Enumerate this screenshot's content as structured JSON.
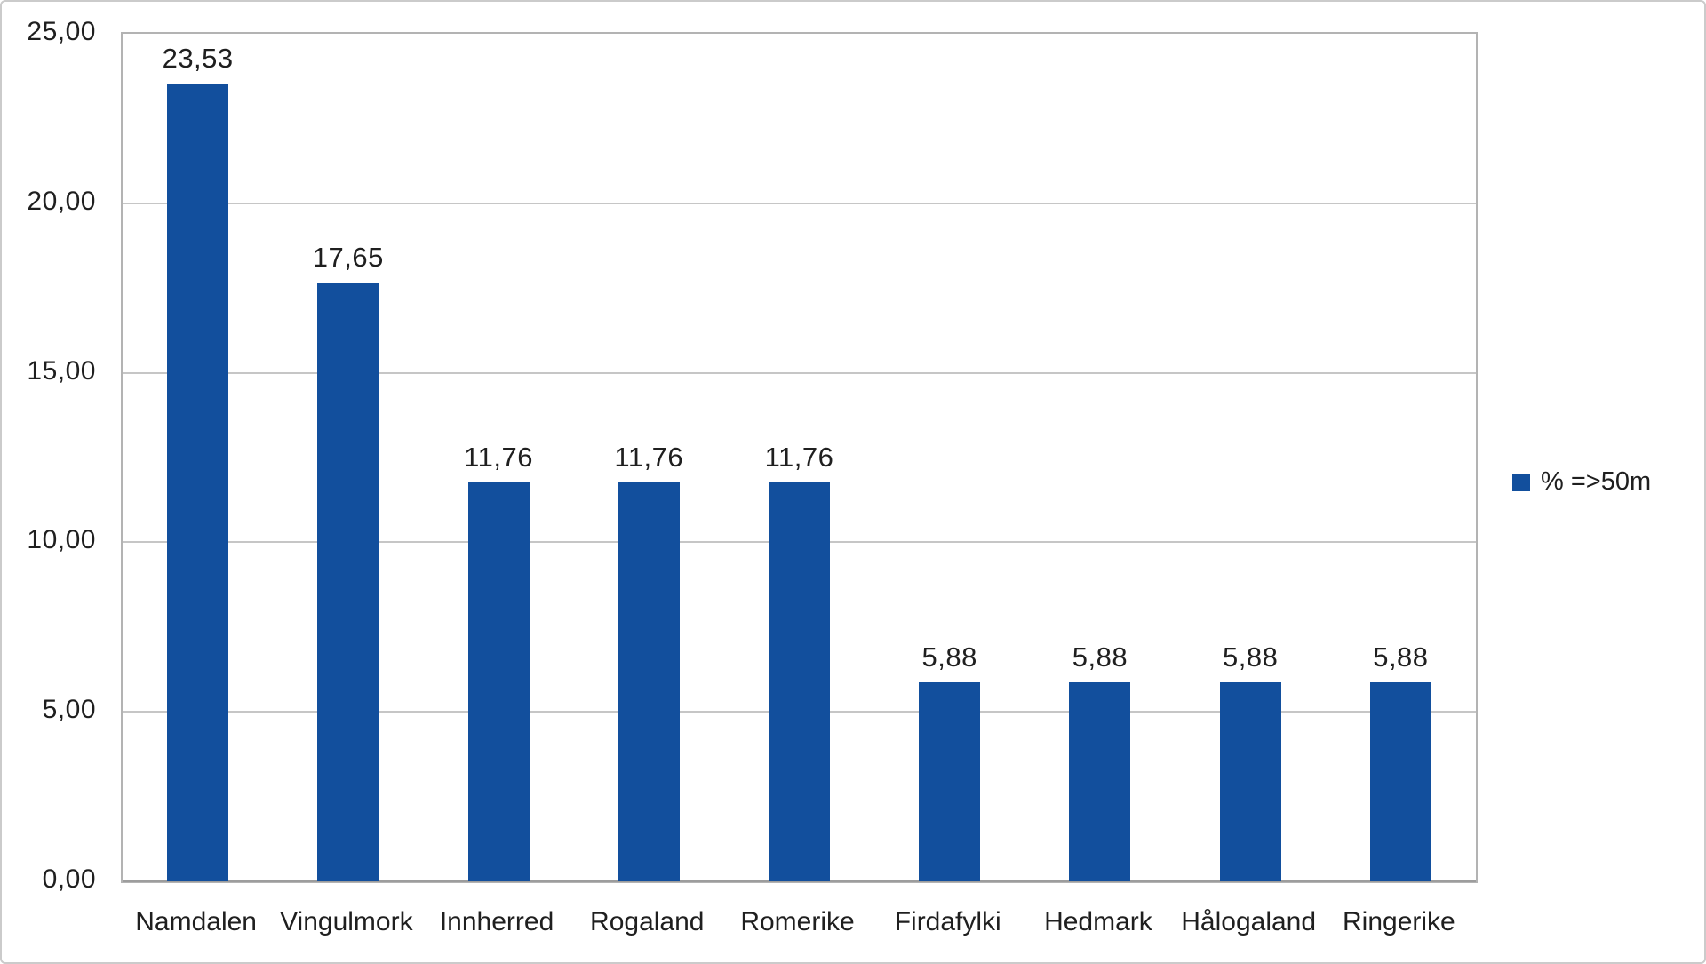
{
  "chart_data": {
    "type": "bar",
    "categories": [
      "Namdalen",
      "Vingulmork",
      "Innherred",
      "Rogaland",
      "Romerike",
      "Firdafylki",
      "Hedmark",
      "Hålogaland",
      "Ringerike"
    ],
    "series": [
      {
        "name": "% =>50m",
        "values": [
          23.53,
          17.65,
          11.76,
          11.76,
          11.76,
          5.88,
          5.88,
          5.88,
          5.88
        ]
      }
    ],
    "value_labels": [
      "23,53",
      "17,65",
      "11,76",
      "11,76",
      "11,76",
      "5,88",
      "5,88",
      "5,88",
      "5,88"
    ],
    "y_ticks": [
      {
        "value": 0,
        "label": "0,00"
      },
      {
        "value": 5,
        "label": "5,00"
      },
      {
        "value": 10,
        "label": "10,00"
      },
      {
        "value": 15,
        "label": "15,00"
      },
      {
        "value": 20,
        "label": "20,00"
      },
      {
        "value": 25,
        "label": "25,00"
      }
    ],
    "ylim": [
      0,
      25
    ],
    "grid": true,
    "legend": {
      "label": "% =>50m",
      "position": "right"
    },
    "colors": {
      "bar": "#124f9d",
      "gridline": "#c6c6c6",
      "plot_border": "#b3b3b3",
      "axis_line": "#9d9d9d",
      "text": "#1f1f1f",
      "outer_border": "#cbcbcb"
    }
  }
}
